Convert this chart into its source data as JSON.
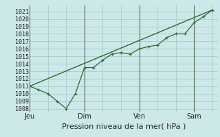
{
  "bg_color": "#cce8e8",
  "grid_color": "#aacccc",
  "line_color": "#2d6a2d",
  "marker_color": "#2d6a2d",
  "ylabel_ticks": [
    1008,
    1009,
    1010,
    1011,
    1012,
    1013,
    1014,
    1015,
    1016,
    1017,
    1018,
    1019,
    1020,
    1021
  ],
  "ylim": [
    1007.5,
    1021.8
  ],
  "xlabel": "Pression niveau de la mer( hPa )",
  "xlabel_fontsize": 8,
  "tick_fontsize": 6,
  "day_labels": [
    "Jeu",
    "Dim",
    "Ven",
    "Sam"
  ],
  "day_positions": [
    0,
    3,
    6,
    9
  ],
  "vline_positions": [
    0,
    3,
    6,
    9
  ],
  "series1_x": [
    0,
    0.5,
    1.0,
    1.5,
    2.0,
    2.5,
    3.0,
    3.5,
    4.0,
    4.5,
    5.0,
    5.5,
    6.0,
    6.5,
    7.0,
    7.5,
    8.0,
    8.5,
    9.0,
    9.5,
    10.0
  ],
  "series1_y": [
    1011.0,
    1010.5,
    1010.0,
    1009.0,
    1008.0,
    1010.0,
    1013.5,
    1013.5,
    1014.5,
    1015.3,
    1015.5,
    1015.3,
    1016.0,
    1016.3,
    1016.5,
    1017.5,
    1018.0,
    1018.0,
    1019.5,
    1020.3,
    1021.2
  ],
  "series2_x": [
    0,
    10.0
  ],
  "series2_y": [
    1011.0,
    1021.2
  ],
  "xlim": [
    0,
    10.3
  ]
}
